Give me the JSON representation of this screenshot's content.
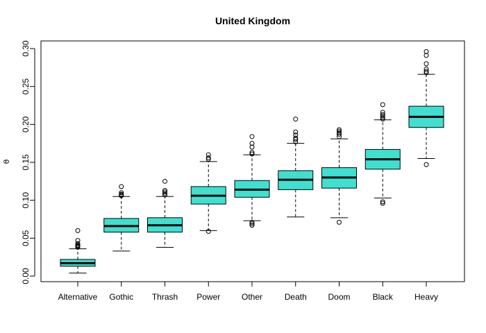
{
  "chart_data": {
    "type": "boxplot",
    "title": "United Kingdom",
    "xlabel": "",
    "ylabel": "θ",
    "ylim": [
      0,
      0.3
    ],
    "yticks": [
      "0.00",
      "0.05",
      "0.10",
      "0.15",
      "0.20",
      "0.25",
      "0.30"
    ],
    "ytick_values": [
      0,
      0.05,
      0.1,
      0.15,
      0.2,
      0.25,
      0.3
    ],
    "box_color": "#40E0D0",
    "grid": false,
    "legend": "none",
    "categories": [
      "Alternative",
      "Gothic",
      "Thrash",
      "Power",
      "Other",
      "Death",
      "Doom",
      "Black",
      "Heavy"
    ],
    "boxes": [
      {
        "min": 0.004,
        "q1": 0.013,
        "median": 0.017,
        "q3": 0.022,
        "max": 0.036,
        "outliers": [
          0.038,
          0.039,
          0.04,
          0.041,
          0.043,
          0.047,
          0.06
        ]
      },
      {
        "min": 0.033,
        "q1": 0.058,
        "median": 0.066,
        "q3": 0.076,
        "max": 0.105,
        "outliers": [
          0.106,
          0.107,
          0.108,
          0.11,
          0.118
        ]
      },
      {
        "min": 0.038,
        "q1": 0.058,
        "median": 0.067,
        "q3": 0.077,
        "max": 0.105,
        "outliers": [
          0.107,
          0.109,
          0.111,
          0.113,
          0.125
        ]
      },
      {
        "min": 0.06,
        "q1": 0.095,
        "median": 0.106,
        "q3": 0.118,
        "max": 0.151,
        "outliers": [
          0.059,
          0.154,
          0.156,
          0.16
        ]
      },
      {
        "min": 0.073,
        "q1": 0.104,
        "median": 0.114,
        "q3": 0.126,
        "max": 0.16,
        "outliers": [
          0.067,
          0.069,
          0.071,
          0.161,
          0.163,
          0.17,
          0.175,
          0.184
        ]
      },
      {
        "min": 0.078,
        "q1": 0.114,
        "median": 0.127,
        "q3": 0.139,
        "max": 0.175,
        "outliers": [
          0.177,
          0.18,
          0.182,
          0.186,
          0.19,
          0.207
        ]
      },
      {
        "min": 0.077,
        "q1": 0.116,
        "median": 0.13,
        "q3": 0.143,
        "max": 0.181,
        "outliers": [
          0.071,
          0.184,
          0.187,
          0.189,
          0.191,
          0.193
        ]
      },
      {
        "min": 0.103,
        "q1": 0.141,
        "median": 0.154,
        "q3": 0.167,
        "max": 0.206,
        "outliers": [
          0.096,
          0.098,
          0.207,
          0.209,
          0.211,
          0.213,
          0.216,
          0.226
        ]
      },
      {
        "min": 0.155,
        "q1": 0.196,
        "median": 0.21,
        "q3": 0.224,
        "max": 0.266,
        "outliers": [
          0.147,
          0.268,
          0.27,
          0.273,
          0.28,
          0.291,
          0.296
        ]
      }
    ]
  }
}
